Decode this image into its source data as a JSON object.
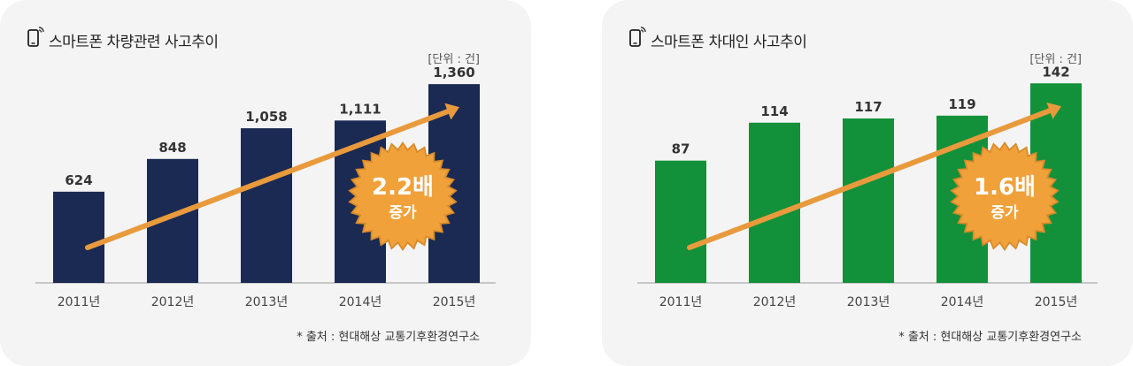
{
  "panels": [
    {
      "title": "스마트폰 차량관련 사고추이",
      "unit": "[단위 : 건]",
      "source": "* 출처 : 현대해상 교통기후환경연구소",
      "badge": {
        "value": "2.2배",
        "text": "증가"
      }
    },
    {
      "title": "스마트폰 차대인 사고추이",
      "unit": "[단위 : 건]",
      "source": "* 출처 : 현대해상 교통기후환경연구소",
      "badge": {
        "value": "1.6배",
        "text": "증가"
      }
    }
  ],
  "colors": {
    "left_bar": "#1b2a52",
    "right_bar": "#13913a",
    "arrow": "#e89a3c",
    "badge": "#f0a13a",
    "panel_bg": "#f4f4f5"
  },
  "chart_data": [
    {
      "type": "bar",
      "title": "스마트폰 차량관련 사고추이",
      "categories": [
        "2011년",
        "2012년",
        "2013년",
        "2014년",
        "2015년"
      ],
      "values": [
        624,
        848,
        1058,
        1111,
        1360
      ],
      "value_labels": [
        "624",
        "848",
        "1,058",
        "1,111",
        "1,360"
      ],
      "ylim": [
        0,
        1500
      ],
      "grid": false
    },
    {
      "type": "bar",
      "title": "스마트폰 차대인 사고추이",
      "categories": [
        "2011년",
        "2012년",
        "2013년",
        "2014년",
        "2015년"
      ],
      "values": [
        87,
        114,
        117,
        119,
        142
      ],
      "value_labels": [
        "87",
        "114",
        "117",
        "119",
        "142"
      ],
      "ylim": [
        0,
        156
      ],
      "grid": false
    }
  ]
}
